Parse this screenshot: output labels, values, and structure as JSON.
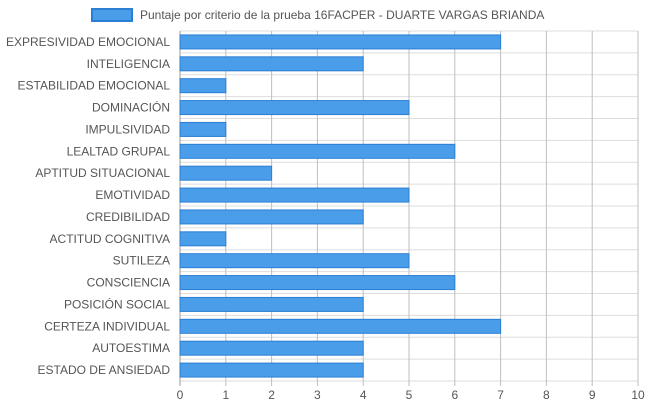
{
  "chart_data": {
    "type": "bar",
    "orientation": "horizontal",
    "categories": [
      "EXPRESIVIDAD EMOCIONAL",
      "INTELIGENCIA",
      "ESTABILIDAD EMOCIONAL",
      "DOMINACIÓN",
      "IMPULSIVIDAD",
      "LEALTAD GRUPAL",
      "APTITUD SITUACIONAL",
      "EMOTIVIDAD",
      "CREDIBILIDAD",
      "ACTITUD COGNITIVA",
      "SUTILEZA",
      "CONSCIENCIA",
      "POSICIÓN SOCIAL",
      "CERTEZA INDIVIDUAL",
      "AUTOESTIMA",
      "ESTADO DE ANSIEDAD"
    ],
    "series": [
      {
        "name": "Puntaje por criterio de la prueba 16FACPER - DUARTE VARGAS BRIANDA",
        "values": [
          7,
          4,
          1,
          5,
          1,
          6,
          2,
          5,
          4,
          1,
          5,
          6,
          4,
          7,
          4,
          4
        ]
      }
    ],
    "xlim": [
      0,
      10
    ],
    "xticks": [
      "0",
      "1",
      "2",
      "3",
      "4",
      "5",
      "6",
      "7",
      "8",
      "9",
      "10"
    ],
    "grid": true,
    "legend": "top-center",
    "colors": {
      "bar_fill": "#4a9de9",
      "bar_stroke": "#2b7fd4",
      "grid": "#dddddd",
      "vgrid": "#bfbfbf",
      "text": "#555555"
    }
  }
}
